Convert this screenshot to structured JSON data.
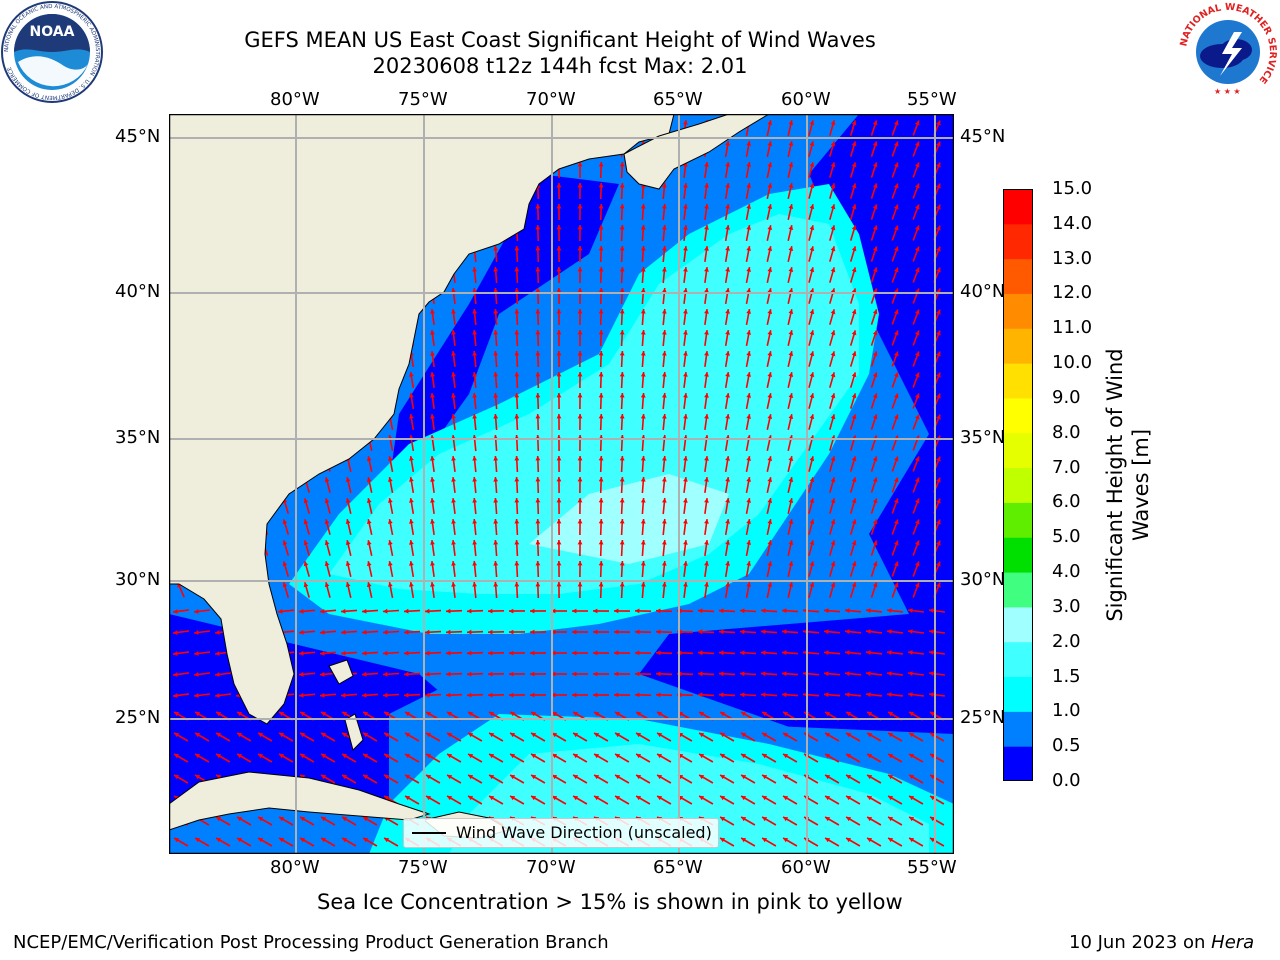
{
  "title": {
    "line1": "GEFS MEAN US East Coast Significant Height of Wind Waves",
    "line2": "20230608 t12z 144h fcst   Max: 2.01"
  },
  "axes": {
    "lon_labels": [
      "80°W",
      "75°W",
      "70°W",
      "65°W",
      "60°W",
      "55°W"
    ],
    "lat_labels": [
      "45°N",
      "40°N",
      "35°N",
      "30°N",
      "25°N"
    ]
  },
  "legend": {
    "label": "Wind Wave Direction (unscaled)"
  },
  "colorbar": {
    "label_line1": "Significant Height of Wind",
    "label_line2": "Waves [m]",
    "ticks": [
      "15.0",
      "14.0",
      "13.0",
      "12.0",
      "11.0",
      "10.0",
      "9.0",
      "8.0",
      "7.0",
      "6.0",
      "5.0",
      "4.0",
      "3.0",
      "2.0",
      "1.5",
      "1.0",
      "0.5",
      "0.0"
    ],
    "levels": [
      {
        "lo": 0.0,
        "hi": 0.5,
        "color": "#0000ff"
      },
      {
        "lo": 0.5,
        "hi": 1.0,
        "color": "#0080ff"
      },
      {
        "lo": 1.0,
        "hi": 1.5,
        "color": "#00ffff"
      },
      {
        "lo": 1.5,
        "hi": 2.0,
        "color": "#40ffff"
      },
      {
        "lo": 2.0,
        "hi": 3.0,
        "color": "#a0ffff"
      },
      {
        "lo": 3.0,
        "hi": 4.0,
        "color": "#40ff80"
      },
      {
        "lo": 4.0,
        "hi": 5.0,
        "color": "#00e000"
      },
      {
        "lo": 5.0,
        "hi": 6.0,
        "color": "#60ee00"
      },
      {
        "lo": 6.0,
        "hi": 7.0,
        "color": "#c0ff00"
      },
      {
        "lo": 7.0,
        "hi": 8.0,
        "color": "#e6ff00"
      },
      {
        "lo": 8.0,
        "hi": 9.0,
        "color": "#ffff00"
      },
      {
        "lo": 9.0,
        "hi": 10.0,
        "color": "#ffe000"
      },
      {
        "lo": 10.0,
        "hi": 11.0,
        "color": "#ffb400"
      },
      {
        "lo": 11.0,
        "hi": 12.0,
        "color": "#ff8c00"
      },
      {
        "lo": 12.0,
        "hi": 13.0,
        "color": "#ff5a00"
      },
      {
        "lo": 13.0,
        "hi": 14.0,
        "color": "#ff2800"
      },
      {
        "lo": 14.0,
        "hi": 15.0,
        "color": "#ff0000"
      }
    ]
  },
  "colors": {
    "land": "#efeedc",
    "arrow": "#ff0000",
    "grid": "#b0b0b0"
  },
  "logos": {
    "left_text": "NOAA",
    "left_ring": "NATIONAL OCEANIC AND ATMOSPHERIC ADMINISTRATION · U.S. DEPARTMENT OF COMMERCE",
    "right_ring": "NATIONAL WEATHER SERVICE"
  },
  "notes": {
    "sea_ice": "Sea Ice Concentration > 15% is shown in pink to yellow"
  },
  "footer": {
    "left": "NCEP/EMC/Verification Post Processing Product Generation Branch",
    "right_date": "10 Jun 2023 on ",
    "right_machine": "Hera"
  }
}
